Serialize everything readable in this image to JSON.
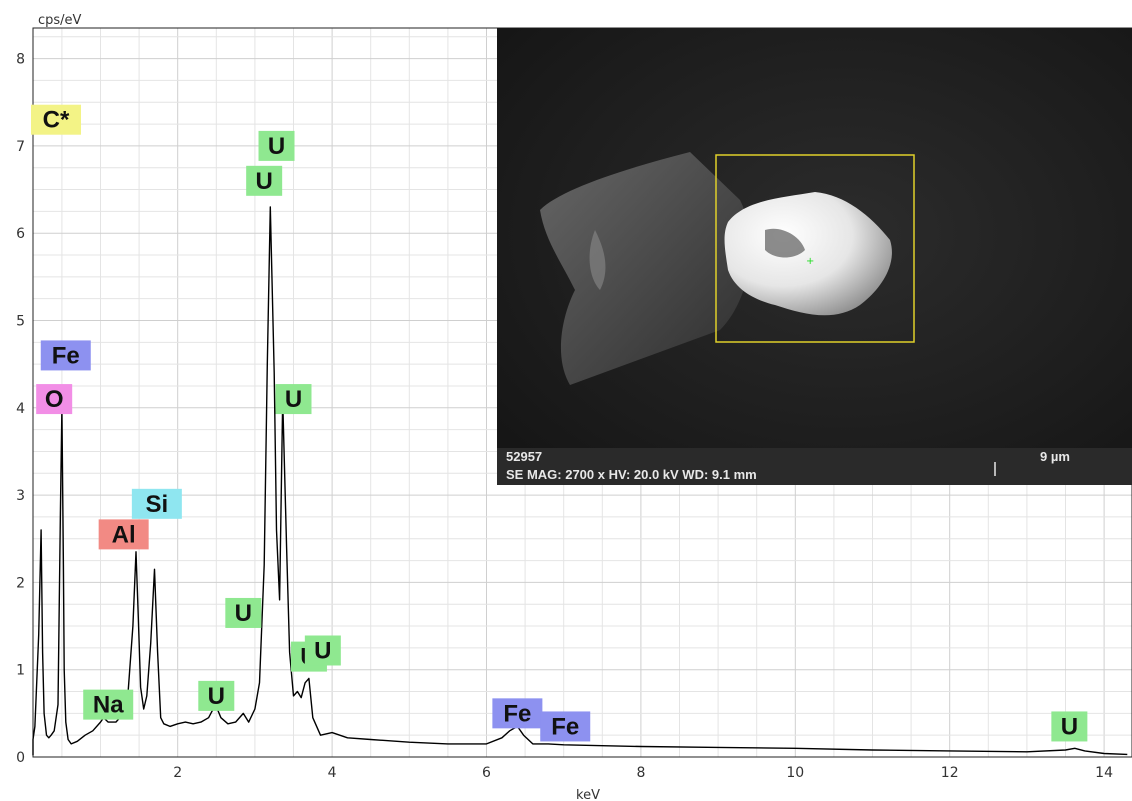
{
  "chart_data": {
    "type": "line",
    "xlabel": "keV",
    "ylabel": "cps/eV",
    "xlim": [
      0,
      14.3
    ],
    "ylim": [
      0,
      8.4
    ],
    "x_ticks": [
      2,
      4,
      6,
      8,
      10,
      12,
      14
    ],
    "y_ticks": [
      0,
      1,
      2,
      3,
      4,
      5,
      6,
      7,
      8
    ],
    "grid": true,
    "series": [
      {
        "x": [
          0.0,
          0.05,
          0.1,
          0.15,
          0.2,
          0.23,
          0.25,
          0.27,
          0.3,
          0.33,
          0.36,
          0.4,
          0.45,
          0.48,
          0.5,
          0.52,
          0.53,
          0.55,
          0.58,
          0.62,
          0.7,
          0.8,
          0.9,
          1.0,
          1.04,
          1.1,
          1.2,
          1.3,
          1.35,
          1.42,
          1.46,
          1.49,
          1.52,
          1.56,
          1.6,
          1.65,
          1.7,
          1.74,
          1.78,
          1.82,
          1.9,
          2.0,
          2.1,
          2.2,
          2.3,
          2.4,
          2.49,
          2.56,
          2.65,
          2.75,
          2.85,
          2.92,
          3.0,
          3.06,
          3.12,
          3.16,
          3.2,
          3.25,
          3.28,
          3.32,
          3.36,
          3.41,
          3.45,
          3.5,
          3.55,
          3.6,
          3.65,
          3.7,
          3.75,
          3.85,
          4.0,
          4.2,
          4.5,
          5.0,
          5.5,
          6.0,
          6.2,
          6.3,
          6.4,
          6.48,
          6.6,
          6.8,
          7.0,
          7.5,
          8.0,
          9.0,
          10.0,
          11.0,
          12.0,
          13.0,
          13.5,
          13.62,
          13.75,
          14.0,
          14.3
        ],
        "y": [
          0.02,
          0.1,
          0.2,
          0.35,
          1.4,
          2.6,
          1.2,
          0.5,
          0.25,
          0.22,
          0.25,
          0.3,
          0.6,
          2.8,
          4.0,
          2.2,
          1.0,
          0.4,
          0.2,
          0.15,
          0.18,
          0.25,
          0.3,
          0.4,
          0.45,
          0.4,
          0.4,
          0.5,
          0.65,
          1.5,
          2.35,
          1.6,
          0.8,
          0.55,
          0.7,
          1.3,
          2.15,
          1.2,
          0.45,
          0.38,
          0.35,
          0.38,
          0.4,
          0.38,
          0.4,
          0.45,
          0.6,
          0.45,
          0.38,
          0.4,
          0.5,
          0.4,
          0.55,
          0.85,
          2.2,
          4.5,
          6.3,
          4.4,
          2.6,
          1.8,
          4.1,
          2.4,
          1.2,
          0.7,
          0.75,
          0.68,
          0.85,
          0.9,
          0.45,
          0.25,
          0.28,
          0.22,
          0.2,
          0.17,
          0.15,
          0.15,
          0.22,
          0.3,
          0.35,
          0.25,
          0.15,
          0.15,
          0.14,
          0.13,
          0.12,
          0.11,
          0.1,
          0.08,
          0.07,
          0.06,
          0.08,
          0.1,
          0.07,
          0.04,
          0.03
        ]
      }
    ],
    "peak_labels": [
      {
        "text": "C*",
        "x": 0.0,
        "y": 7.3,
        "color": "#f3f386"
      },
      {
        "text": "O",
        "x": 0.4,
        "y": 4.1,
        "color": "#f28ee6"
      },
      {
        "text": "Fe",
        "x": 0.55,
        "y": 4.6,
        "color": "#8d91f0"
      },
      {
        "text": "Na",
        "x": 1.1,
        "y": 0.6,
        "color": "#8fe890"
      },
      {
        "text": "Al",
        "x": 1.3,
        "y": 2.55,
        "color": "#f28a84"
      },
      {
        "text": "Si",
        "x": 1.73,
        "y": 2.9,
        "color": "#8fe6f0"
      },
      {
        "text": "U",
        "x": 2.5,
        "y": 0.7,
        "color": "#8fe890"
      },
      {
        "text": "U",
        "x": 2.85,
        "y": 1.65,
        "color": "#8fe890"
      },
      {
        "text": "U",
        "x": 3.12,
        "y": 6.6,
        "color": "#8fe890"
      },
      {
        "text": "U",
        "x": 3.28,
        "y": 7.0,
        "color": "#8fe890"
      },
      {
        "text": "U",
        "x": 3.5,
        "y": 4.1,
        "color": "#8fe890"
      },
      {
        "text": "U",
        "x": 3.7,
        "y": 1.15,
        "color": "#8fe890"
      },
      {
        "text": "U",
        "x": 3.88,
        "y": 1.22,
        "color": "#8fe890"
      },
      {
        "text": "Fe",
        "x": 6.4,
        "y": 0.5,
        "color": "#8d91f0"
      },
      {
        "text": "Fe",
        "x": 7.02,
        "y": 0.35,
        "color": "#8d91f0"
      },
      {
        "text": "U",
        "x": 13.55,
        "y": 0.35,
        "color": "#8fe890"
      }
    ]
  },
  "sem_image": {
    "sample_id": "52957",
    "info": "SE  MAG: 2700 x  HV: 20.0 kV  WD: 9.1 mm",
    "scale": "9 µm",
    "roi_color": "#e0d02a"
  }
}
